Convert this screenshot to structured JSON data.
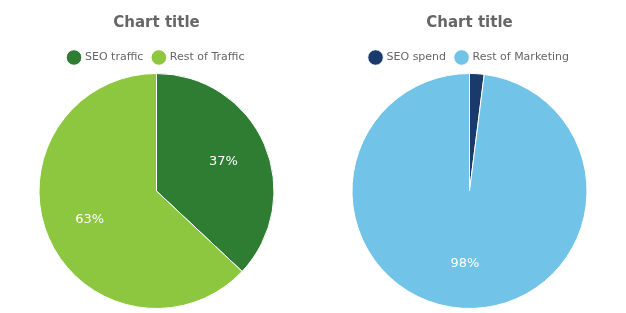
{
  "chart_data": [
    {
      "type": "pie",
      "title": "Chart title",
      "categories": [
        "SEO traffic",
        "Rest of Traffic"
      ],
      "values": [
        37,
        63
      ],
      "value_labels": [
        "37%",
        "63%"
      ],
      "colors": [
        "#2e7d32",
        "#8dc63f"
      ],
      "data_labels": true,
      "legend": "top"
    },
    {
      "type": "pie",
      "title": "Chart title",
      "categories": [
        "SEO spend",
        "Rest of Marketing"
      ],
      "values": [
        2,
        98
      ],
      "value_labels": [
        null,
        "98%"
      ],
      "colors": [
        "#1a3a6b",
        "#72c3e8"
      ],
      "data_labels": true,
      "legend": "top"
    }
  ]
}
